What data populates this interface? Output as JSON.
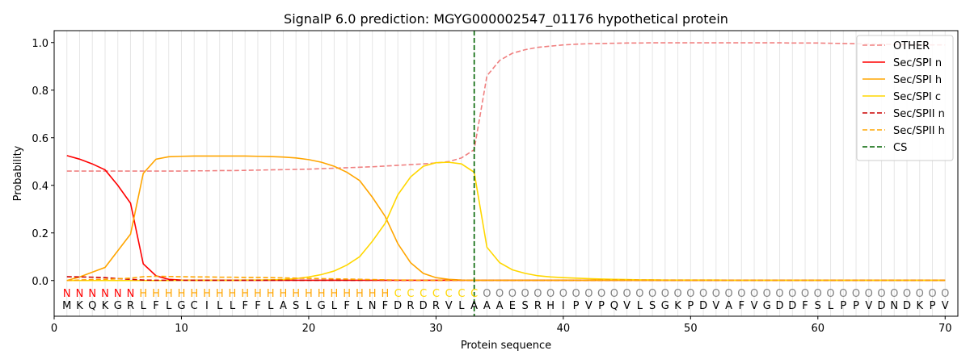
{
  "chart_data": {
    "type": "line",
    "title": "SignalP 6.0 prediction: MGYG000002547_01176 hypothetical protein",
    "xlabel": "Protein sequence",
    "ylabel": "Probability",
    "xlim": [
      0,
      71
    ],
    "ylim": [
      -0.15,
      1.05
    ],
    "xticks": [
      0,
      10,
      20,
      30,
      40,
      50,
      60,
      70
    ],
    "yticks": [
      0.0,
      0.2,
      0.4,
      0.6,
      0.8,
      1.0
    ],
    "xtick_labels": [
      "0",
      "10",
      "20",
      "30",
      "40",
      "50",
      "60",
      "70"
    ],
    "ytick_labels": [
      "0.0",
      "0.2",
      "0.4",
      "0.6",
      "0.8",
      "1.0"
    ],
    "legend_position": "top-right",
    "cleavage_site": 33,
    "sequence": [
      "M",
      "K",
      "Q",
      "K",
      "G",
      "R",
      "L",
      "F",
      "L",
      "G",
      "C",
      "I",
      "L",
      "L",
      "F",
      "F",
      "L",
      "A",
      "S",
      "L",
      "G",
      "L",
      "F",
      "L",
      "N",
      "F",
      "D",
      "R",
      "D",
      "R",
      "V",
      "L",
      "A",
      "A",
      "A",
      "E",
      "S",
      "R",
      "H",
      "I",
      "P",
      "V",
      "P",
      "Q",
      "V",
      "L",
      "S",
      "G",
      "K",
      "P",
      "D",
      "V",
      "A",
      "F",
      "V",
      "G",
      "D",
      "D",
      "F",
      "S",
      "L",
      "P",
      "P",
      "V",
      "D",
      "N",
      "D",
      "K",
      "P",
      "V"
    ],
    "labels": [
      "N",
      "N",
      "N",
      "N",
      "N",
      "N",
      "H",
      "H",
      "H",
      "H",
      "H",
      "H",
      "H",
      "H",
      "H",
      "H",
      "H",
      "H",
      "H",
      "H",
      "H",
      "H",
      "H",
      "H",
      "H",
      "H",
      "C",
      "C",
      "C",
      "C",
      "C",
      "C",
      "C",
      "O",
      "O",
      "O",
      "O",
      "O",
      "O",
      "O",
      "O",
      "O",
      "O",
      "O",
      "O",
      "O",
      "O",
      "O",
      "O",
      "O",
      "O",
      "O",
      "O",
      "O",
      "O",
      "O",
      "O",
      "O",
      "O",
      "O",
      "O",
      "O",
      "O",
      "O",
      "O",
      "O",
      "O",
      "O",
      "O",
      "O"
    ],
    "label_colors": {
      "N": "#ff0000",
      "H": "#ffa500",
      "C": "#ffd700",
      "O": "#808080"
    },
    "x": [
      1,
      2,
      3,
      4,
      5,
      6,
      7,
      8,
      9,
      10,
      11,
      12,
      13,
      14,
      15,
      16,
      17,
      18,
      19,
      20,
      21,
      22,
      23,
      24,
      25,
      26,
      27,
      28,
      29,
      30,
      31,
      32,
      33,
      34,
      35,
      36,
      37,
      38,
      39,
      40,
      41,
      42,
      43,
      44,
      45,
      46,
      47,
      48,
      49,
      50,
      51,
      52,
      53,
      54,
      55,
      56,
      57,
      58,
      59,
      60,
      61,
      62,
      63,
      64,
      65,
      66,
      67,
      68,
      69,
      70
    ],
    "series": [
      {
        "name": "OTHER",
        "color": "#f08080",
        "dash": "dashed",
        "values": [
          0.46,
          0.46,
          0.46,
          0.46,
          0.46,
          0.46,
          0.46,
          0.46,
          0.46,
          0.46,
          0.461,
          0.461,
          0.462,
          0.462,
          0.463,
          0.464,
          0.465,
          0.466,
          0.467,
          0.468,
          0.47,
          0.472,
          0.474,
          0.476,
          0.478,
          0.481,
          0.484,
          0.487,
          0.49,
          0.494,
          0.5,
          0.515,
          0.55,
          0.86,
          0.925,
          0.955,
          0.97,
          0.98,
          0.985,
          0.99,
          0.993,
          0.995,
          0.996,
          0.997,
          0.998,
          0.998,
          0.999,
          0.999,
          0.999,
          0.999,
          0.999,
          0.999,
          0.999,
          0.999,
          0.999,
          0.999,
          0.999,
          0.998,
          0.998,
          0.998,
          0.997,
          0.996,
          0.995,
          0.994,
          0.993,
          0.992,
          0.991,
          0.99,
          0.99,
          0.99
        ]
      },
      {
        "name": "Sec/SPI n",
        "color": "#ff0000",
        "dash": "solid",
        "values": [
          0.525,
          0.51,
          0.49,
          0.465,
          0.4,
          0.325,
          0.07,
          0.02,
          0.005,
          0.002,
          0.001,
          0.001,
          0.001,
          0.001,
          0.001,
          0.001,
          0.001,
          0.001,
          0.001,
          0.001,
          0.001,
          0.001,
          0.001,
          0.001,
          0.001,
          0.001,
          0.001,
          0.001,
          0.001,
          0.001,
          0.001,
          0.001,
          0.001,
          0.001,
          0.001,
          0.001,
          0.001,
          0.001,
          0.001,
          0.001,
          0.001,
          0.001,
          0.001,
          0.001,
          0.001,
          0.001,
          0.001,
          0.001,
          0.001,
          0.001,
          0.001,
          0.001,
          0.001,
          0.001,
          0.001,
          0.001,
          0.001,
          0.001,
          0.001,
          0.001,
          0.001,
          0.001,
          0.001,
          0.001,
          0.001,
          0.001,
          0.001,
          0.001,
          0.001,
          0.001
        ]
      },
      {
        "name": "Sec/SPI h",
        "color": "#ffa500",
        "dash": "solid",
        "values": [
          0.0,
          0.015,
          0.035,
          0.055,
          0.125,
          0.195,
          0.45,
          0.51,
          0.52,
          0.522,
          0.523,
          0.523,
          0.523,
          0.523,
          0.523,
          0.522,
          0.521,
          0.519,
          0.515,
          0.508,
          0.497,
          0.48,
          0.455,
          0.42,
          0.35,
          0.27,
          0.155,
          0.075,
          0.03,
          0.012,
          0.005,
          0.002,
          0.001,
          0.001,
          0.001,
          0.001,
          0.001,
          0.001,
          0.001,
          0.001,
          0.001,
          0.001,
          0.001,
          0.001,
          0.001,
          0.001,
          0.001,
          0.001,
          0.001,
          0.001,
          0.001,
          0.001,
          0.001,
          0.001,
          0.001,
          0.001,
          0.001,
          0.001,
          0.001,
          0.001,
          0.001,
          0.001,
          0.001,
          0.001,
          0.001,
          0.001,
          0.001,
          0.001,
          0.001,
          0.001
        ]
      },
      {
        "name": "Sec/SPI c",
        "color": "#ffd700",
        "dash": "solid",
        "values": [
          0.0,
          0.0,
          0.0,
          0.0,
          0.0,
          0.0,
          0.0,
          0.0,
          0.0,
          0.001,
          0.001,
          0.001,
          0.001,
          0.001,
          0.002,
          0.002,
          0.003,
          0.004,
          0.008,
          0.015,
          0.025,
          0.04,
          0.065,
          0.1,
          0.165,
          0.24,
          0.36,
          0.435,
          0.48,
          0.495,
          0.497,
          0.49,
          0.455,
          0.14,
          0.075,
          0.045,
          0.03,
          0.02,
          0.015,
          0.012,
          0.01,
          0.008,
          0.006,
          0.005,
          0.004,
          0.003,
          0.003,
          0.002,
          0.002,
          0.002,
          0.002,
          0.002,
          0.001,
          0.001,
          0.001,
          0.001,
          0.001,
          0.001,
          0.001,
          0.001,
          0.001,
          0.001,
          0.001,
          0.001,
          0.001,
          0.001,
          0.001,
          0.001,
          0.001,
          0.001
        ]
      },
      {
        "name": "Sec/SPII n",
        "color": "#cc0000",
        "dash": "dashed",
        "values": [
          0.016,
          0.015,
          0.014,
          0.012,
          0.008,
          0.005,
          0.002,
          0.001,
          0.001,
          0.001,
          0.001,
          0.001,
          0.001,
          0.001,
          0.001,
          0.001,
          0.001,
          0.001,
          0.001,
          0.001,
          0.001,
          0.001,
          0.001,
          0.001,
          0.001,
          0.001,
          0.001,
          0.001,
          0.001,
          0.001,
          0.001,
          0.001,
          0.001,
          0.001,
          0.001,
          0.001,
          0.001,
          0.001,
          0.001,
          0.001,
          0.001,
          0.001,
          0.001,
          0.001,
          0.001,
          0.001,
          0.001,
          0.001,
          0.001,
          0.001,
          0.001,
          0.001,
          0.001,
          0.001,
          0.001,
          0.001,
          0.001,
          0.001,
          0.001,
          0.001,
          0.001,
          0.001,
          0.001,
          0.001,
          0.001,
          0.001,
          0.001,
          0.001,
          0.001,
          0.001
        ]
      },
      {
        "name": "Sec/SPII h",
        "color": "#ffa500",
        "dash": "dashed",
        "values": [
          0.0,
          0.002,
          0.004,
          0.005,
          0.007,
          0.01,
          0.016,
          0.018,
          0.017,
          0.016,
          0.015,
          0.015,
          0.014,
          0.014,
          0.013,
          0.013,
          0.012,
          0.011,
          0.01,
          0.009,
          0.008,
          0.007,
          0.006,
          0.005,
          0.004,
          0.003,
          0.002,
          0.002,
          0.001,
          0.001,
          0.001,
          0.001,
          0.001,
          0.001,
          0.001,
          0.001,
          0.001,
          0.001,
          0.001,
          0.001,
          0.001,
          0.001,
          0.001,
          0.001,
          0.001,
          0.001,
          0.001,
          0.001,
          0.001,
          0.001,
          0.001,
          0.001,
          0.001,
          0.001,
          0.001,
          0.001,
          0.001,
          0.001,
          0.001,
          0.001,
          0.001,
          0.001,
          0.001,
          0.001,
          0.001,
          0.001,
          0.001,
          0.001,
          0.001,
          0.001
        ]
      }
    ],
    "legend": [
      {
        "name": "OTHER",
        "color": "#f08080",
        "dash": "dashed"
      },
      {
        "name": "Sec/SPI n",
        "color": "#ff0000",
        "dash": "solid"
      },
      {
        "name": "Sec/SPI h",
        "color": "#ffa500",
        "dash": "solid"
      },
      {
        "name": "Sec/SPI c",
        "color": "#ffd700",
        "dash": "solid"
      },
      {
        "name": "Sec/SPII n",
        "color": "#cc0000",
        "dash": "dashed"
      },
      {
        "name": "Sec/SPII h",
        "color": "#ffa500",
        "dash": "dashed"
      },
      {
        "name": "CS",
        "color": "#006400",
        "dash": "dashed"
      }
    ]
  }
}
